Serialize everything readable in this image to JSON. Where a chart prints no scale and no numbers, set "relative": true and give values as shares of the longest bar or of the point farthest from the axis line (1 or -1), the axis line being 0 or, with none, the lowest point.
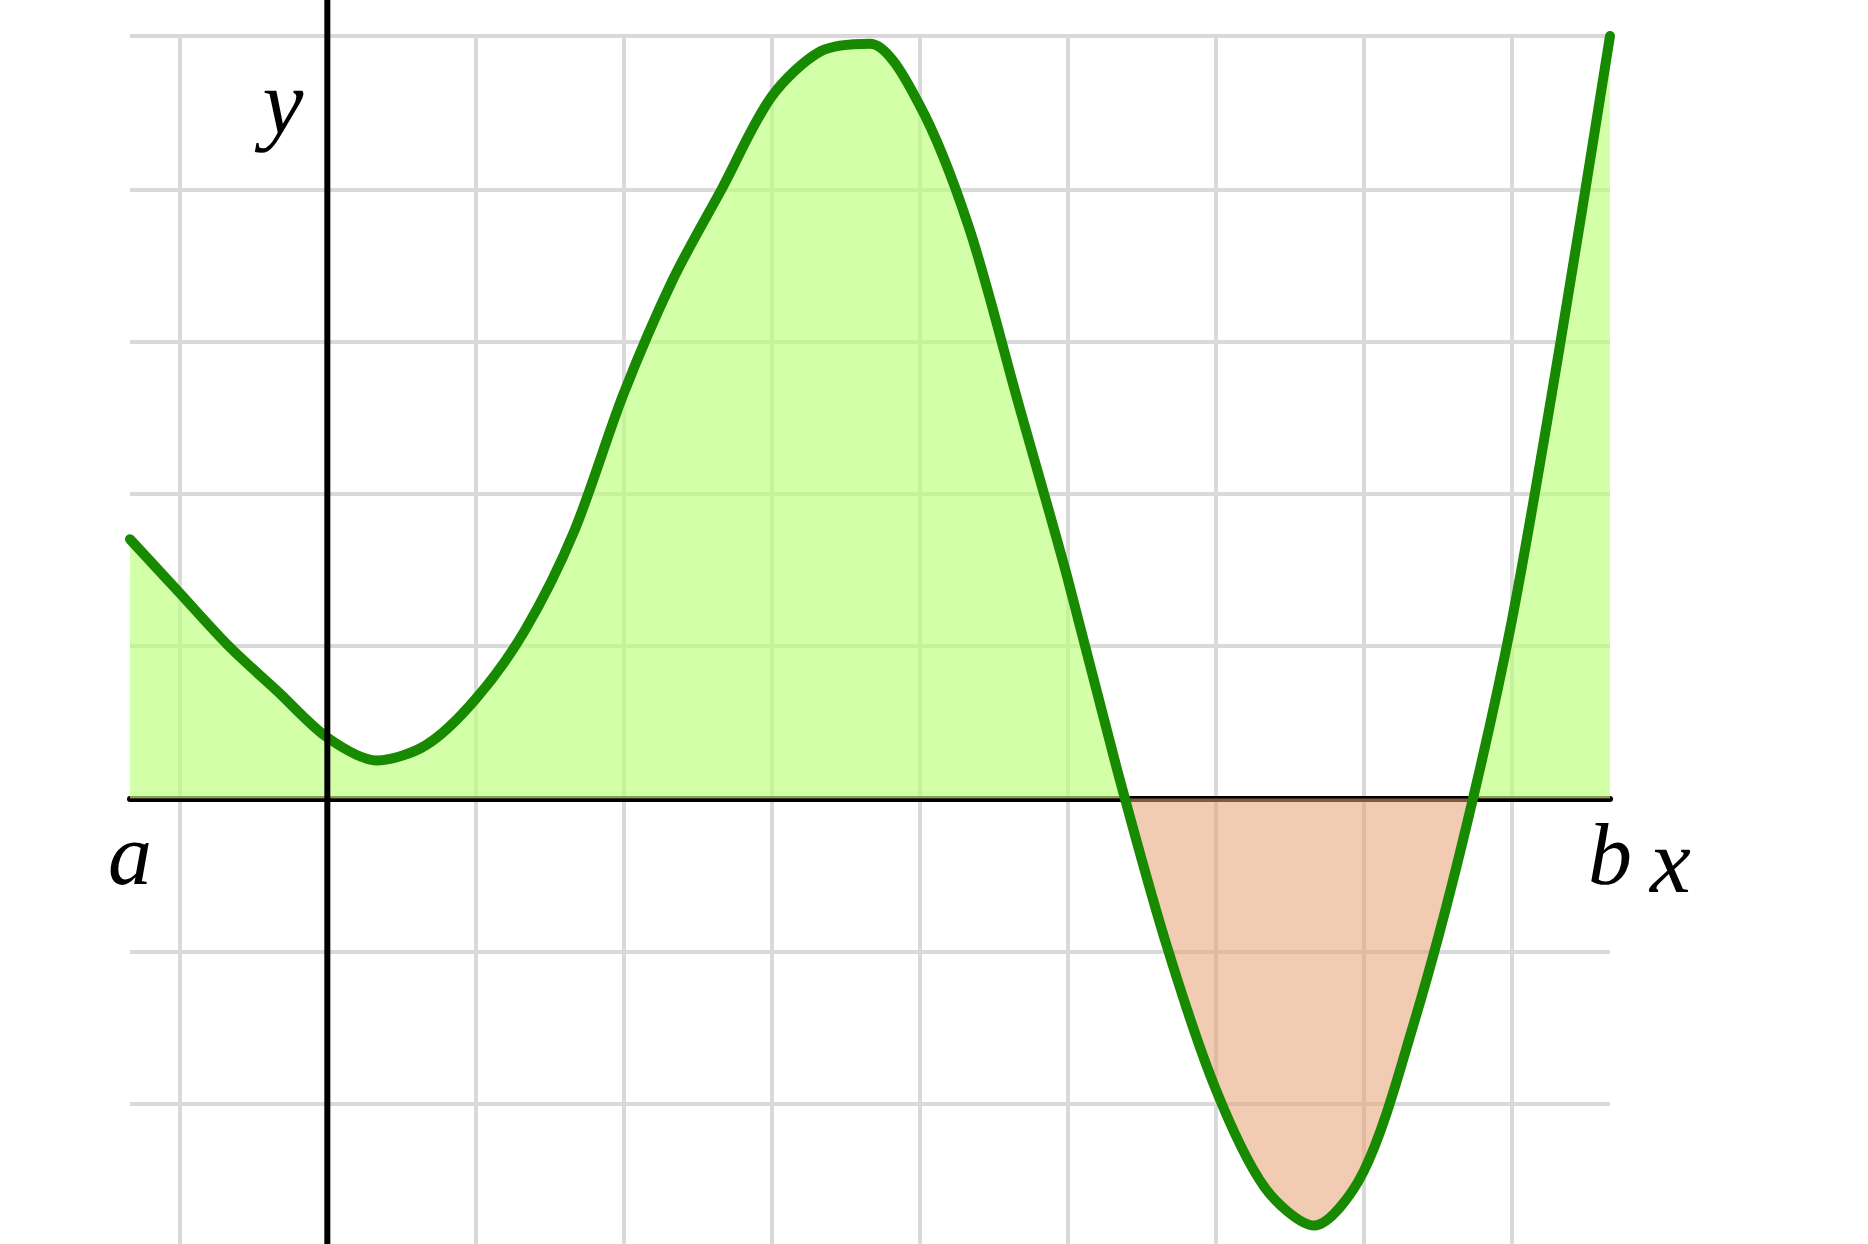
{
  "chart_data": {
    "type": "area",
    "xlabel": "x",
    "ylabel": "y",
    "relative": true,
    "grid": true,
    "marker": "none",
    "line_style": "solid",
    "categories": [
      "a",
      null,
      null,
      null,
      null,
      null,
      null,
      null,
      null,
      null,
      null,
      null,
      null,
      null,
      null,
      null,
      null,
      null,
      null,
      null,
      null,
      null,
      null,
      null,
      null,
      null,
      null,
      null,
      null,
      null,
      "b"
    ],
    "series": [
      {
        "color": "#178a00",
        "values": [
          0.34,
          0.27,
          0.2,
          0.14,
          0.08,
          0.05,
          0.07,
          0.13,
          0.22,
          0.35,
          0.53,
          0.68,
          0.8,
          0.92,
          0.98,
          0.99,
          0.91,
          0.75,
          0.52,
          0.29,
          0.04,
          -0.19,
          -0.38,
          -0.51,
          -0.56,
          -0.49,
          -0.3,
          -0.06,
          0.23,
          0.6,
          1
        ]
      }
    ]
  }
}
